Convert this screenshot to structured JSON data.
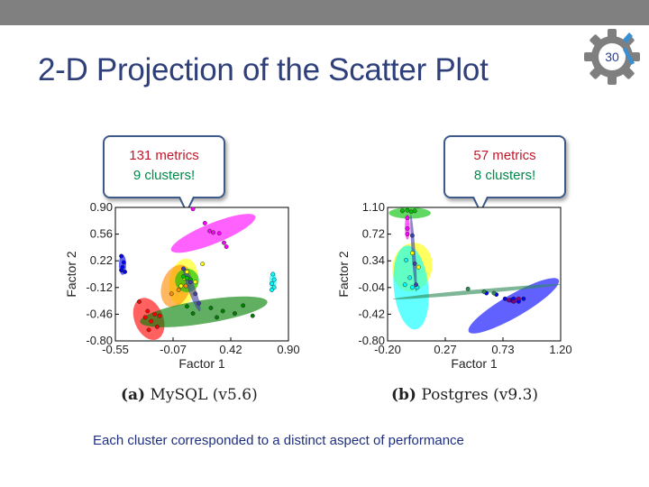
{
  "slide": {
    "title": "2-D Projection of the Scatter Plot",
    "page_number": "30",
    "footer": "Each cluster corresponded to a distinct aspect of performance",
    "colors": {
      "title": "#2e3f7a",
      "callout_red": "#c0182a",
      "callout_green": "#00894a",
      "footer": "#1f2f80",
      "topbar": "#808080"
    }
  },
  "callouts": [
    {
      "line1": "131 metrics",
      "line2": "9 clusters!"
    },
    {
      "line1": "57 metrics",
      "line2": "8 clusters!"
    }
  ],
  "chart_data": [
    {
      "type": "scatter",
      "caption_label": "(a)",
      "caption_text": "MySQL (v5.6)",
      "xlabel": "Factor 1",
      "ylabel": "Factor 2",
      "xlim": [
        -0.55,
        0.9
      ],
      "ylim": [
        -0.8,
        0.9
      ],
      "xticks": [
        "-0.55",
        "-0.07",
        "0.42",
        "0.90"
      ],
      "yticks": [
        "0.90",
        "0.56",
        "0.22",
        "-0.12",
        "-0.46",
        "-0.80"
      ],
      "grid": false,
      "clusters": [
        {
          "color": "#ff00ff",
          "ellipse": {
            "cx": 0.27,
            "cy": 0.57,
            "rx": 0.38,
            "ry": 0.13,
            "angle": -22
          },
          "points": [
            [
              0.1,
              0.88
            ],
            [
              0.24,
              0.6
            ],
            [
              0.27,
              0.58
            ],
            [
              0.32,
              0.57
            ],
            [
              0.36,
              0.45
            ],
            [
              0.38,
              0.4
            ],
            [
              0.2,
              0.7
            ]
          ]
        },
        {
          "color": "#0000ff",
          "ellipse": {
            "cx": -0.49,
            "cy": 0.17,
            "rx": 0.03,
            "ry": 0.13,
            "angle": 0
          },
          "points": [
            [
              -0.5,
              0.28
            ],
            [
              -0.48,
              0.2
            ],
            [
              -0.49,
              0.14
            ],
            [
              -0.47,
              0.08
            ],
            [
              -0.5,
              0.1
            ]
          ]
        },
        {
          "color": "#00ffff",
          "ellipse": {
            "cx": 0.77,
            "cy": -0.04,
            "rx": 0.03,
            "ry": 0.12,
            "angle": 0
          },
          "points": [
            [
              0.77,
              0.05
            ],
            [
              0.78,
              -0.02
            ],
            [
              0.76,
              -0.07
            ],
            [
              0.78,
              -0.12
            ],
            [
              0.76,
              -0.15
            ]
          ]
        },
        {
          "color": "#ffff00",
          "ellipse": {
            "cx": 0.02,
            "cy": -0.05,
            "rx": 0.12,
            "ry": 0.3,
            "angle": 10
          },
          "points": [
            [
              0.18,
              0.18
            ],
            [
              0.05,
              0.08
            ],
            [
              0.08,
              -0.02
            ],
            [
              0.0,
              -0.1
            ],
            [
              0.12,
              -0.05
            ],
            [
              0.03,
              0.0
            ]
          ]
        },
        {
          "color": "#ff8c00",
          "ellipse": {
            "cx": -0.04,
            "cy": -0.1,
            "rx": 0.12,
            "ry": 0.28,
            "angle": 20
          },
          "points": [
            [
              -0.08,
              -0.2
            ],
            [
              -0.02,
              -0.15
            ],
            [
              0.04,
              -0.1
            ]
          ]
        },
        {
          "color": "#00c000",
          "ellipse": {
            "cx": 0.05,
            "cy": -0.03,
            "rx": 0.1,
            "ry": 0.15,
            "angle": 0
          },
          "points": [
            [
              0.05,
              0.0
            ],
            [
              0.02,
              0.02
            ],
            [
              0.08,
              -0.02
            ]
          ]
        },
        {
          "color": "#ff0000",
          "ellipse": {
            "cx": -0.27,
            "cy": -0.52,
            "rx": 0.12,
            "ry": 0.28,
            "angle": -22
          },
          "points": [
            [
              -0.35,
              -0.3
            ],
            [
              -0.28,
              -0.42
            ],
            [
              -0.22,
              -0.46
            ],
            [
              -0.3,
              -0.5
            ],
            [
              -0.25,
              -0.55
            ],
            [
              -0.2,
              -0.62
            ],
            [
              -0.27,
              -0.66
            ],
            [
              -0.18,
              -0.48
            ]
          ]
        },
        {
          "color": "#008000",
          "ellipse": {
            "cx": 0.19,
            "cy": -0.43,
            "rx": 0.54,
            "ry": 0.15,
            "angle": -9
          },
          "points": [
            [
              0.05,
              -0.36
            ],
            [
              0.25,
              -0.38
            ],
            [
              0.35,
              -0.42
            ],
            [
              0.45,
              -0.45
            ],
            [
              0.52,
              -0.35
            ],
            [
              0.6,
              -0.48
            ],
            [
              0.3,
              -0.5
            ],
            [
              0.1,
              -0.45
            ]
          ]
        },
        {
          "color": "#4040aa",
          "ellipse": {
            "cx": 0.09,
            "cy": -0.14,
            "rx": 0.03,
            "ry": 0.3,
            "angle": -20
          },
          "points": [
            [
              0.02,
              0.12
            ],
            [
              0.08,
              -0.05
            ],
            [
              0.12,
              -0.2
            ],
            [
              0.15,
              -0.32
            ]
          ]
        }
      ]
    },
    {
      "type": "scatter",
      "caption_label": "(b)",
      "caption_text": "Postgres (v9.3)",
      "xlabel": "Factor 1",
      "ylabel": "Factor 2",
      "xlim": [
        -0.2,
        1.2
      ],
      "ylim": [
        -0.8,
        1.1
      ],
      "xticks": [
        "-0.20",
        "0.27",
        "0.73",
        "1.20"
      ],
      "yticks": [
        "1.10",
        "0.72",
        "0.34",
        "-0.04",
        "-0.42",
        "-0.80"
      ],
      "grid": false,
      "clusters": [
        {
          "color": "#00c000",
          "ellipse": {
            "cx": -0.02,
            "cy": 1.02,
            "rx": 0.17,
            "ry": 0.08,
            "angle": 0
          },
          "points": [
            [
              -0.08,
              1.05
            ],
            [
              -0.04,
              1.06
            ],
            [
              -0.01,
              1.04
            ],
            [
              0.02,
              1.05
            ]
          ]
        },
        {
          "color": "#ff00ff",
          "ellipse": {
            "cx": -0.04,
            "cy": 0.82,
            "rx": 0.02,
            "ry": 0.18,
            "angle": 0
          },
          "points": [
            [
              -0.04,
              0.95
            ],
            [
              -0.04,
              0.8
            ],
            [
              -0.04,
              0.72
            ]
          ]
        },
        {
          "color": "#ffff00",
          "ellipse": {
            "cx": 0.0,
            "cy": 0.25,
            "rx": 0.16,
            "ry": 0.35,
            "angle": 12
          },
          "points": [
            [
              0.0,
              0.45
            ],
            [
              0.05,
              0.25
            ]
          ]
        },
        {
          "color": "#00ffff",
          "ellipse": {
            "cx": -0.01,
            "cy": -0.04,
            "rx": 0.14,
            "ry": 0.6,
            "angle": -6
          },
          "points": [
            [
              -0.05,
              0.35
            ],
            [
              -0.02,
              0.1
            ],
            [
              0.0,
              -0.04
            ],
            [
              0.04,
              -0.04
            ],
            [
              -0.06,
              0.0
            ]
          ]
        },
        {
          "color": "#0000ff",
          "ellipse": {
            "cx": 0.82,
            "cy": -0.3,
            "rx": 0.42,
            "ry": 0.16,
            "angle": -30
          },
          "points": [
            [
              0.6,
              -0.12
            ],
            [
              0.68,
              -0.14
            ],
            [
              0.75,
              -0.2
            ],
            [
              0.8,
              -0.22
            ],
            [
              0.86,
              -0.24
            ],
            [
              0.82,
              -0.2
            ],
            [
              0.9,
              -0.2
            ]
          ]
        },
        {
          "color": "#800080",
          "ellipse": {
            "cx": 0.82,
            "cy": -0.22,
            "rx": 0.06,
            "ry": 0.04,
            "angle": 0
          },
          "points": [
            [
              0.78,
              -0.22
            ],
            [
              0.82,
              -0.24
            ],
            [
              0.86,
              -0.2
            ]
          ]
        },
        {
          "color": "#2e8b57",
          "ellipse": {
            "cx": 0.52,
            "cy": -0.1,
            "rx": 0.68,
            "ry": 0.03,
            "angle": -5
          },
          "points": [
            [
              0.45,
              -0.06
            ],
            [
              0.58,
              -0.1
            ],
            [
              0.66,
              -0.12
            ]
          ]
        },
        {
          "color": "#4040aa",
          "ellipse": {
            "cx": 0.01,
            "cy": 0.45,
            "rx": 0.015,
            "ry": 0.55,
            "angle": -4
          },
          "points": [
            [
              0.0,
              0.7
            ],
            [
              0.02,
              0.3
            ],
            [
              0.03,
              0.0
            ]
          ]
        }
      ]
    }
  ]
}
